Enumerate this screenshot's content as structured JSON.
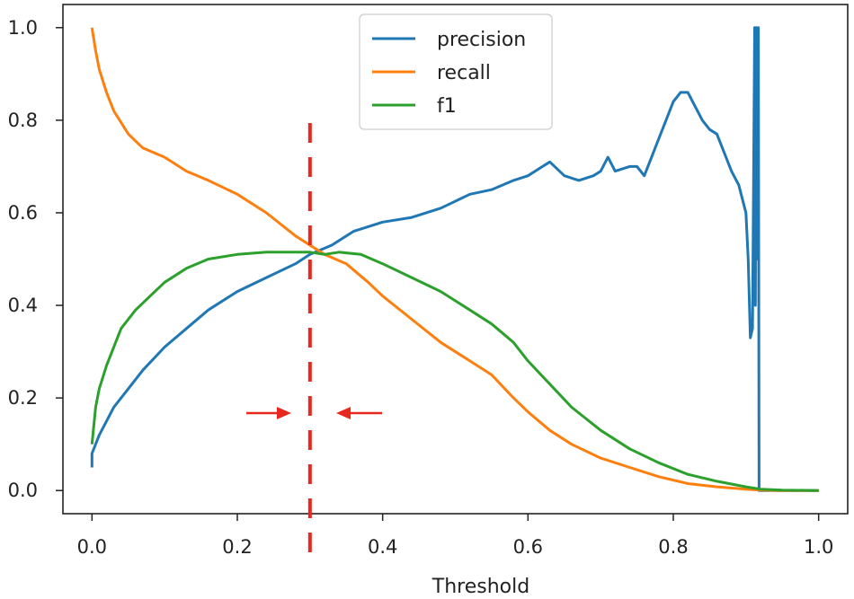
{
  "chart_data": {
    "type": "line",
    "title": "",
    "xlabel": "Threshold",
    "ylabel": "",
    "xlim": [
      -0.04,
      1.04
    ],
    "ylim": [
      -0.05,
      1.05
    ],
    "xticks": [
      "0.0",
      "0.2",
      "0.4",
      "0.6",
      "0.8",
      "1.0"
    ],
    "yticks": [
      "0.0",
      "0.2",
      "0.4",
      "0.6",
      "0.8",
      "1.0"
    ],
    "grid": false,
    "legend_position": "top-center",
    "series": [
      {
        "name": "precision",
        "color": "#1f77b4",
        "x": [
          0.0,
          0.0,
          0.01,
          0.02,
          0.03,
          0.05,
          0.07,
          0.1,
          0.13,
          0.16,
          0.2,
          0.24,
          0.28,
          0.3,
          0.33,
          0.36,
          0.4,
          0.44,
          0.48,
          0.52,
          0.55,
          0.58,
          0.6,
          0.62,
          0.63,
          0.65,
          0.67,
          0.69,
          0.7,
          0.71,
          0.72,
          0.74,
          0.75,
          0.76,
          0.77,
          0.78,
          0.79,
          0.8,
          0.81,
          0.82,
          0.83,
          0.84,
          0.85,
          0.86,
          0.87,
          0.88,
          0.89,
          0.9,
          0.903,
          0.906,
          0.909,
          0.912,
          0.913,
          0.914,
          0.916,
          0.917,
          0.918,
          0.919,
          0.925,
          0.95,
          1.0
        ],
        "y": [
          0.05,
          0.08,
          0.12,
          0.15,
          0.18,
          0.22,
          0.26,
          0.31,
          0.35,
          0.39,
          0.43,
          0.46,
          0.49,
          0.51,
          0.53,
          0.56,
          0.58,
          0.59,
          0.61,
          0.64,
          0.65,
          0.67,
          0.68,
          0.7,
          0.71,
          0.68,
          0.67,
          0.68,
          0.69,
          0.72,
          0.69,
          0.7,
          0.7,
          0.68,
          0.72,
          0.76,
          0.8,
          0.84,
          0.86,
          0.86,
          0.83,
          0.8,
          0.78,
          0.77,
          0.73,
          0.69,
          0.66,
          0.6,
          0.5,
          0.33,
          0.35,
          1.0,
          0.4,
          1.0,
          0.5,
          1.0,
          0.0,
          0.0,
          0.0,
          0.0,
          0.0
        ]
      },
      {
        "name": "recall",
        "color": "#ff7f0e",
        "x": [
          0.0,
          0.005,
          0.01,
          0.02,
          0.03,
          0.05,
          0.07,
          0.1,
          0.13,
          0.16,
          0.2,
          0.24,
          0.28,
          0.3,
          0.32,
          0.35,
          0.38,
          0.4,
          0.44,
          0.48,
          0.52,
          0.55,
          0.58,
          0.6,
          0.63,
          0.66,
          0.7,
          0.74,
          0.78,
          0.82,
          0.86,
          0.9,
          0.92,
          0.95,
          1.0
        ],
        "y": [
          1.0,
          0.95,
          0.91,
          0.86,
          0.82,
          0.77,
          0.74,
          0.72,
          0.69,
          0.67,
          0.64,
          0.6,
          0.55,
          0.53,
          0.51,
          0.49,
          0.45,
          0.42,
          0.37,
          0.32,
          0.28,
          0.25,
          0.2,
          0.17,
          0.13,
          0.1,
          0.07,
          0.05,
          0.03,
          0.015,
          0.008,
          0.003,
          0.001,
          0.0,
          0.0
        ]
      },
      {
        "name": "f1",
        "color": "#2ca02c",
        "x": [
          0.0,
          0.005,
          0.01,
          0.02,
          0.03,
          0.04,
          0.06,
          0.08,
          0.1,
          0.13,
          0.16,
          0.2,
          0.24,
          0.28,
          0.3,
          0.32,
          0.34,
          0.37,
          0.4,
          0.44,
          0.48,
          0.52,
          0.55,
          0.58,
          0.6,
          0.63,
          0.66,
          0.7,
          0.74,
          0.78,
          0.82,
          0.86,
          0.9,
          0.92,
          0.95,
          1.0
        ],
        "y": [
          0.1,
          0.18,
          0.22,
          0.27,
          0.31,
          0.35,
          0.39,
          0.42,
          0.45,
          0.48,
          0.5,
          0.51,
          0.515,
          0.515,
          0.515,
          0.51,
          0.515,
          0.51,
          0.49,
          0.46,
          0.43,
          0.39,
          0.36,
          0.32,
          0.28,
          0.23,
          0.18,
          0.13,
          0.09,
          0.06,
          0.035,
          0.02,
          0.008,
          0.003,
          0.001,
          0.0
        ]
      }
    ],
    "annotations": {
      "threshold_line_x": 0.3,
      "threshold_line_color": "#e8281e",
      "arrow_color": "#e8281e"
    }
  }
}
